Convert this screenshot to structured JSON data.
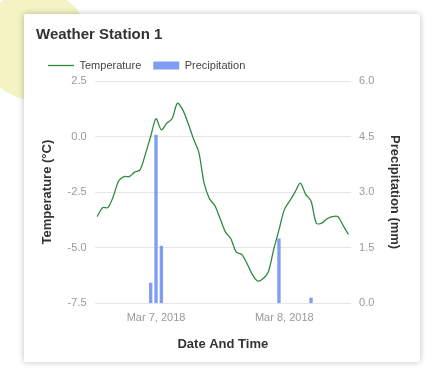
{
  "chart_data": {
    "type": "line",
    "title": "Weather Station 1",
    "x_label": "Date And Time",
    "y_label": "Temperature (°C)",
    "y2_label": "Precipitation (mm)",
    "categories": [
      null,
      null,
      null,
      null,
      null,
      null,
      null,
      null,
      null,
      null,
      null,
      "Mar 7, 2018",
      null,
      null,
      null,
      null,
      null,
      null,
      null,
      null,
      null,
      null,
      null,
      null,
      null,
      null,
      null,
      null,
      null,
      null,
      null,
      null,
      null,
      null,
      null,
      "Mar 8, 2018",
      null,
      null,
      null,
      null,
      null,
      null,
      null,
      null,
      null,
      null,
      null,
      null
    ],
    "series": [
      {
        "name": "Temperature",
        "type": "line",
        "color": "#2e8b3e",
        "values": [
          -3.6,
          -3.2,
          -3.2,
          -2.7,
          -2.0,
          -1.8,
          -1.8,
          -1.6,
          -1.5,
          -0.8,
          0.0,
          0.8,
          0.3,
          0.6,
          0.8,
          1.5,
          1.2,
          0.6,
          -0.1,
          -0.7,
          -2.1,
          -2.8,
          -3.1,
          -3.7,
          -4.3,
          -4.6,
          -5.2,
          -5.3,
          -5.7,
          -6.2,
          -6.5,
          -6.4,
          -6.1,
          -5.1,
          -4.2,
          -3.3,
          -2.9,
          -2.5,
          -2.1,
          -2.6,
          -2.9,
          -3.9,
          -3.9,
          -3.7,
          -3.6,
          -3.6,
          -4.0,
          -4.4
        ]
      },
      {
        "name": "Precipitation",
        "type": "bar",
        "color": "#7f9ef2",
        "axis": "y2",
        "values": [
          0,
          0,
          0,
          0,
          0,
          0,
          0,
          0,
          0,
          0,
          0.55,
          4.55,
          1.55,
          0,
          0,
          0,
          0,
          0,
          0,
          0,
          0,
          0,
          0,
          0,
          0,
          0,
          0,
          0,
          0,
          0,
          0,
          0,
          0,
          0,
          1.75,
          0,
          0,
          0,
          0,
          0,
          0.15,
          0,
          0,
          0,
          0,
          0,
          0,
          0
        ]
      }
    ],
    "ylim": [
      -7.5,
      2.5
    ],
    "yticks": [
      {
        "value": -7.5,
        "label": "-7.5"
      },
      {
        "value": -5,
        "label": "-5.0"
      },
      -2.5,
      {
        "value": 0,
        "label": "0.0"
      },
      2.5
    ],
    "y2lim": [
      0,
      6
    ],
    "y2ticks": [
      {
        "value": 0,
        "label": "0.0"
      },
      1.5,
      {
        "value": 3,
        "label": "3.0"
      },
      4.5,
      {
        "value": 6,
        "label": "6.0"
      }
    ],
    "grid": true,
    "legend": "top-left"
  }
}
